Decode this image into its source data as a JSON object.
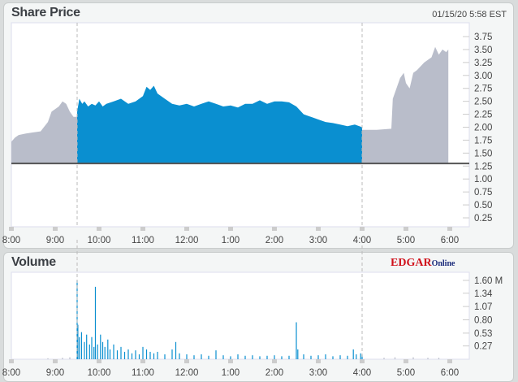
{
  "header": {
    "title": "Share Price",
    "timestamp": "01/15/20  5:58 EST"
  },
  "volume_panel": {
    "title": "Volume",
    "logo_main": "EDGAR",
    "logo_sub": "Online"
  },
  "colors": {
    "regular": "#0a8fd0",
    "extended": "#b9bdca",
    "baseline": "#555555"
  },
  "chart_data": [
    {
      "type": "area",
      "title": "Share Price",
      "x_ticks": [
        "8:00",
        "9:00",
        "10:00",
        "11:00",
        "12:00",
        "1:00",
        "2:00",
        "3:00",
        "4:00",
        "5:00",
        "6:00"
      ],
      "y_ticks": [
        "3.75",
        "3.50",
        "3.25",
        "3.00",
        "2.75",
        "2.50",
        "2.25",
        "2.00",
        "1.75",
        "1.50",
        "1.25",
        "1.00",
        "0.75",
        "0.50",
        "0.25"
      ],
      "ylim": [
        0.0,
        3.9
      ],
      "baseline": 1.3,
      "session_markers": [
        "09:30",
        "16:00"
      ],
      "series": [
        {
          "session": "pre",
          "points": [
            [
              "08:00",
              1.72
            ],
            [
              "08:05",
              1.8
            ],
            [
              "08:10",
              1.85
            ],
            [
              "08:20",
              1.88
            ],
            [
              "08:30",
              1.9
            ],
            [
              "08:40",
              1.92
            ],
            [
              "08:50",
              2.1
            ],
            [
              "08:55",
              2.3
            ],
            [
              "09:05",
              2.4
            ],
            [
              "09:10",
              2.5
            ],
            [
              "09:15",
              2.45
            ],
            [
              "09:20",
              2.3
            ],
            [
              "09:25",
              2.2
            ],
            [
              "09:30",
              2.2
            ]
          ]
        },
        {
          "session": "regular",
          "points": [
            [
              "09:30",
              2.3
            ],
            [
              "09:33",
              2.55
            ],
            [
              "09:37",
              2.45
            ],
            [
              "09:40",
              2.5
            ],
            [
              "09:45",
              2.4
            ],
            [
              "09:50",
              2.45
            ],
            [
              "09:55",
              2.42
            ],
            [
              "10:00",
              2.5
            ],
            [
              "10:05",
              2.4
            ],
            [
              "10:10",
              2.45
            ],
            [
              "10:20",
              2.5
            ],
            [
              "10:30",
              2.55
            ],
            [
              "10:40",
              2.45
            ],
            [
              "10:50",
              2.5
            ],
            [
              "11:00",
              2.6
            ],
            [
              "11:05",
              2.78
            ],
            [
              "11:10",
              2.72
            ],
            [
              "11:15",
              2.8
            ],
            [
              "11:20",
              2.65
            ],
            [
              "11:30",
              2.55
            ],
            [
              "11:40",
              2.45
            ],
            [
              "11:50",
              2.42
            ],
            [
              "12:00",
              2.45
            ],
            [
              "12:10",
              2.4
            ],
            [
              "12:20",
              2.45
            ],
            [
              "12:30",
              2.5
            ],
            [
              "12:40",
              2.45
            ],
            [
              "12:50",
              2.4
            ],
            [
              "13:00",
              2.42
            ],
            [
              "13:10",
              2.38
            ],
            [
              "13:20",
              2.45
            ],
            [
              "13:30",
              2.45
            ],
            [
              "13:40",
              2.52
            ],
            [
              "13:50",
              2.45
            ],
            [
              "14:00",
              2.5
            ],
            [
              "14:10",
              2.5
            ],
            [
              "14:20",
              2.48
            ],
            [
              "14:30",
              2.4
            ],
            [
              "14:40",
              2.25
            ],
            [
              "14:50",
              2.2
            ],
            [
              "15:00",
              2.15
            ],
            [
              "15:10",
              2.1
            ],
            [
              "15:20",
              2.08
            ],
            [
              "15:30",
              2.05
            ],
            [
              "15:40",
              2.02
            ],
            [
              "15:50",
              2.05
            ],
            [
              "16:00",
              2.0
            ]
          ]
        },
        {
          "session": "post",
          "points": [
            [
              "16:00",
              1.95
            ],
            [
              "16:20",
              1.95
            ],
            [
              "16:40",
              1.97
            ],
            [
              "16:42",
              2.55
            ],
            [
              "16:47",
              2.75
            ],
            [
              "16:52",
              2.95
            ],
            [
              "16:57",
              3.05
            ],
            [
              "17:00",
              2.85
            ],
            [
              "17:05",
              2.75
            ],
            [
              "17:10",
              3.05
            ],
            [
              "17:15",
              3.1
            ],
            [
              "17:25",
              3.25
            ],
            [
              "17:35",
              3.35
            ],
            [
              "17:40",
              3.55
            ],
            [
              "17:45",
              3.4
            ],
            [
              "17:50",
              3.5
            ],
            [
              "17:55",
              3.45
            ],
            [
              "17:58",
              3.5
            ]
          ]
        }
      ]
    },
    {
      "type": "bar",
      "title": "Volume",
      "x_ticks": [
        "8:00",
        "9:00",
        "10:00",
        "11:00",
        "12:00",
        "1:00",
        "2:00",
        "3:00",
        "4:00",
        "5:00",
        "6:00"
      ],
      "y_ticks": [
        "1.60 M",
        "1.34",
        "1.07",
        "0.80",
        "0.53",
        "0.27"
      ],
      "ylim": [
        0,
        1.75
      ],
      "points": [
        [
          "08:50",
          0.02
        ],
        [
          "09:10",
          0.03
        ],
        [
          "09:20",
          0.04
        ],
        [
          "09:30",
          1.6
        ],
        [
          "09:31",
          0.7
        ],
        [
          "09:33",
          0.45
        ],
        [
          "09:36",
          0.55
        ],
        [
          "09:40",
          0.35
        ],
        [
          "09:43",
          0.5
        ],
        [
          "09:47",
          0.3
        ],
        [
          "09:50",
          0.45
        ],
        [
          "09:53",
          0.25
        ],
        [
          "09:55",
          1.47
        ],
        [
          "09:58",
          0.3
        ],
        [
          "10:02",
          0.5
        ],
        [
          "10:05",
          0.35
        ],
        [
          "10:08",
          0.25
        ],
        [
          "10:12",
          0.4
        ],
        [
          "10:15",
          0.2
        ],
        [
          "10:20",
          0.3
        ],
        [
          "10:25",
          0.18
        ],
        [
          "10:30",
          0.25
        ],
        [
          "10:35",
          0.15
        ],
        [
          "10:40",
          0.2
        ],
        [
          "10:45",
          0.12
        ],
        [
          "10:50",
          0.18
        ],
        [
          "10:55",
          0.1
        ],
        [
          "11:00",
          0.25
        ],
        [
          "11:05",
          0.2
        ],
        [
          "11:10",
          0.15
        ],
        [
          "11:15",
          0.12
        ],
        [
          "11:20",
          0.15
        ],
        [
          "11:30",
          0.1
        ],
        [
          "11:40",
          0.2
        ],
        [
          "11:45",
          0.35
        ],
        [
          "11:50",
          0.12
        ],
        [
          "12:00",
          0.1
        ],
        [
          "12:10",
          0.08
        ],
        [
          "12:20",
          0.1
        ],
        [
          "12:30",
          0.07
        ],
        [
          "12:40",
          0.18
        ],
        [
          "12:50",
          0.08
        ],
        [
          "13:00",
          0.06
        ],
        [
          "13:10",
          0.1
        ],
        [
          "13:20",
          0.07
        ],
        [
          "13:30",
          0.08
        ],
        [
          "13:40",
          0.06
        ],
        [
          "13:50",
          0.07
        ],
        [
          "14:00",
          0.08
        ],
        [
          "14:10",
          0.06
        ],
        [
          "14:20",
          0.07
        ],
        [
          "14:30",
          0.75
        ],
        [
          "14:32",
          0.2
        ],
        [
          "14:40",
          0.1
        ],
        [
          "14:50",
          0.07
        ],
        [
          "15:00",
          0.08
        ],
        [
          "15:10",
          0.1
        ],
        [
          "15:20",
          0.06
        ],
        [
          "15:30",
          0.08
        ],
        [
          "15:40",
          0.07
        ],
        [
          "15:48",
          0.2
        ],
        [
          "15:52",
          0.1
        ],
        [
          "15:58",
          0.12
        ],
        [
          "16:00",
          0.08
        ],
        [
          "16:30",
          0.03
        ],
        [
          "16:45",
          0.04
        ],
        [
          "17:10",
          0.04
        ],
        [
          "17:30",
          0.03
        ],
        [
          "17:45",
          0.03
        ]
      ]
    }
  ]
}
